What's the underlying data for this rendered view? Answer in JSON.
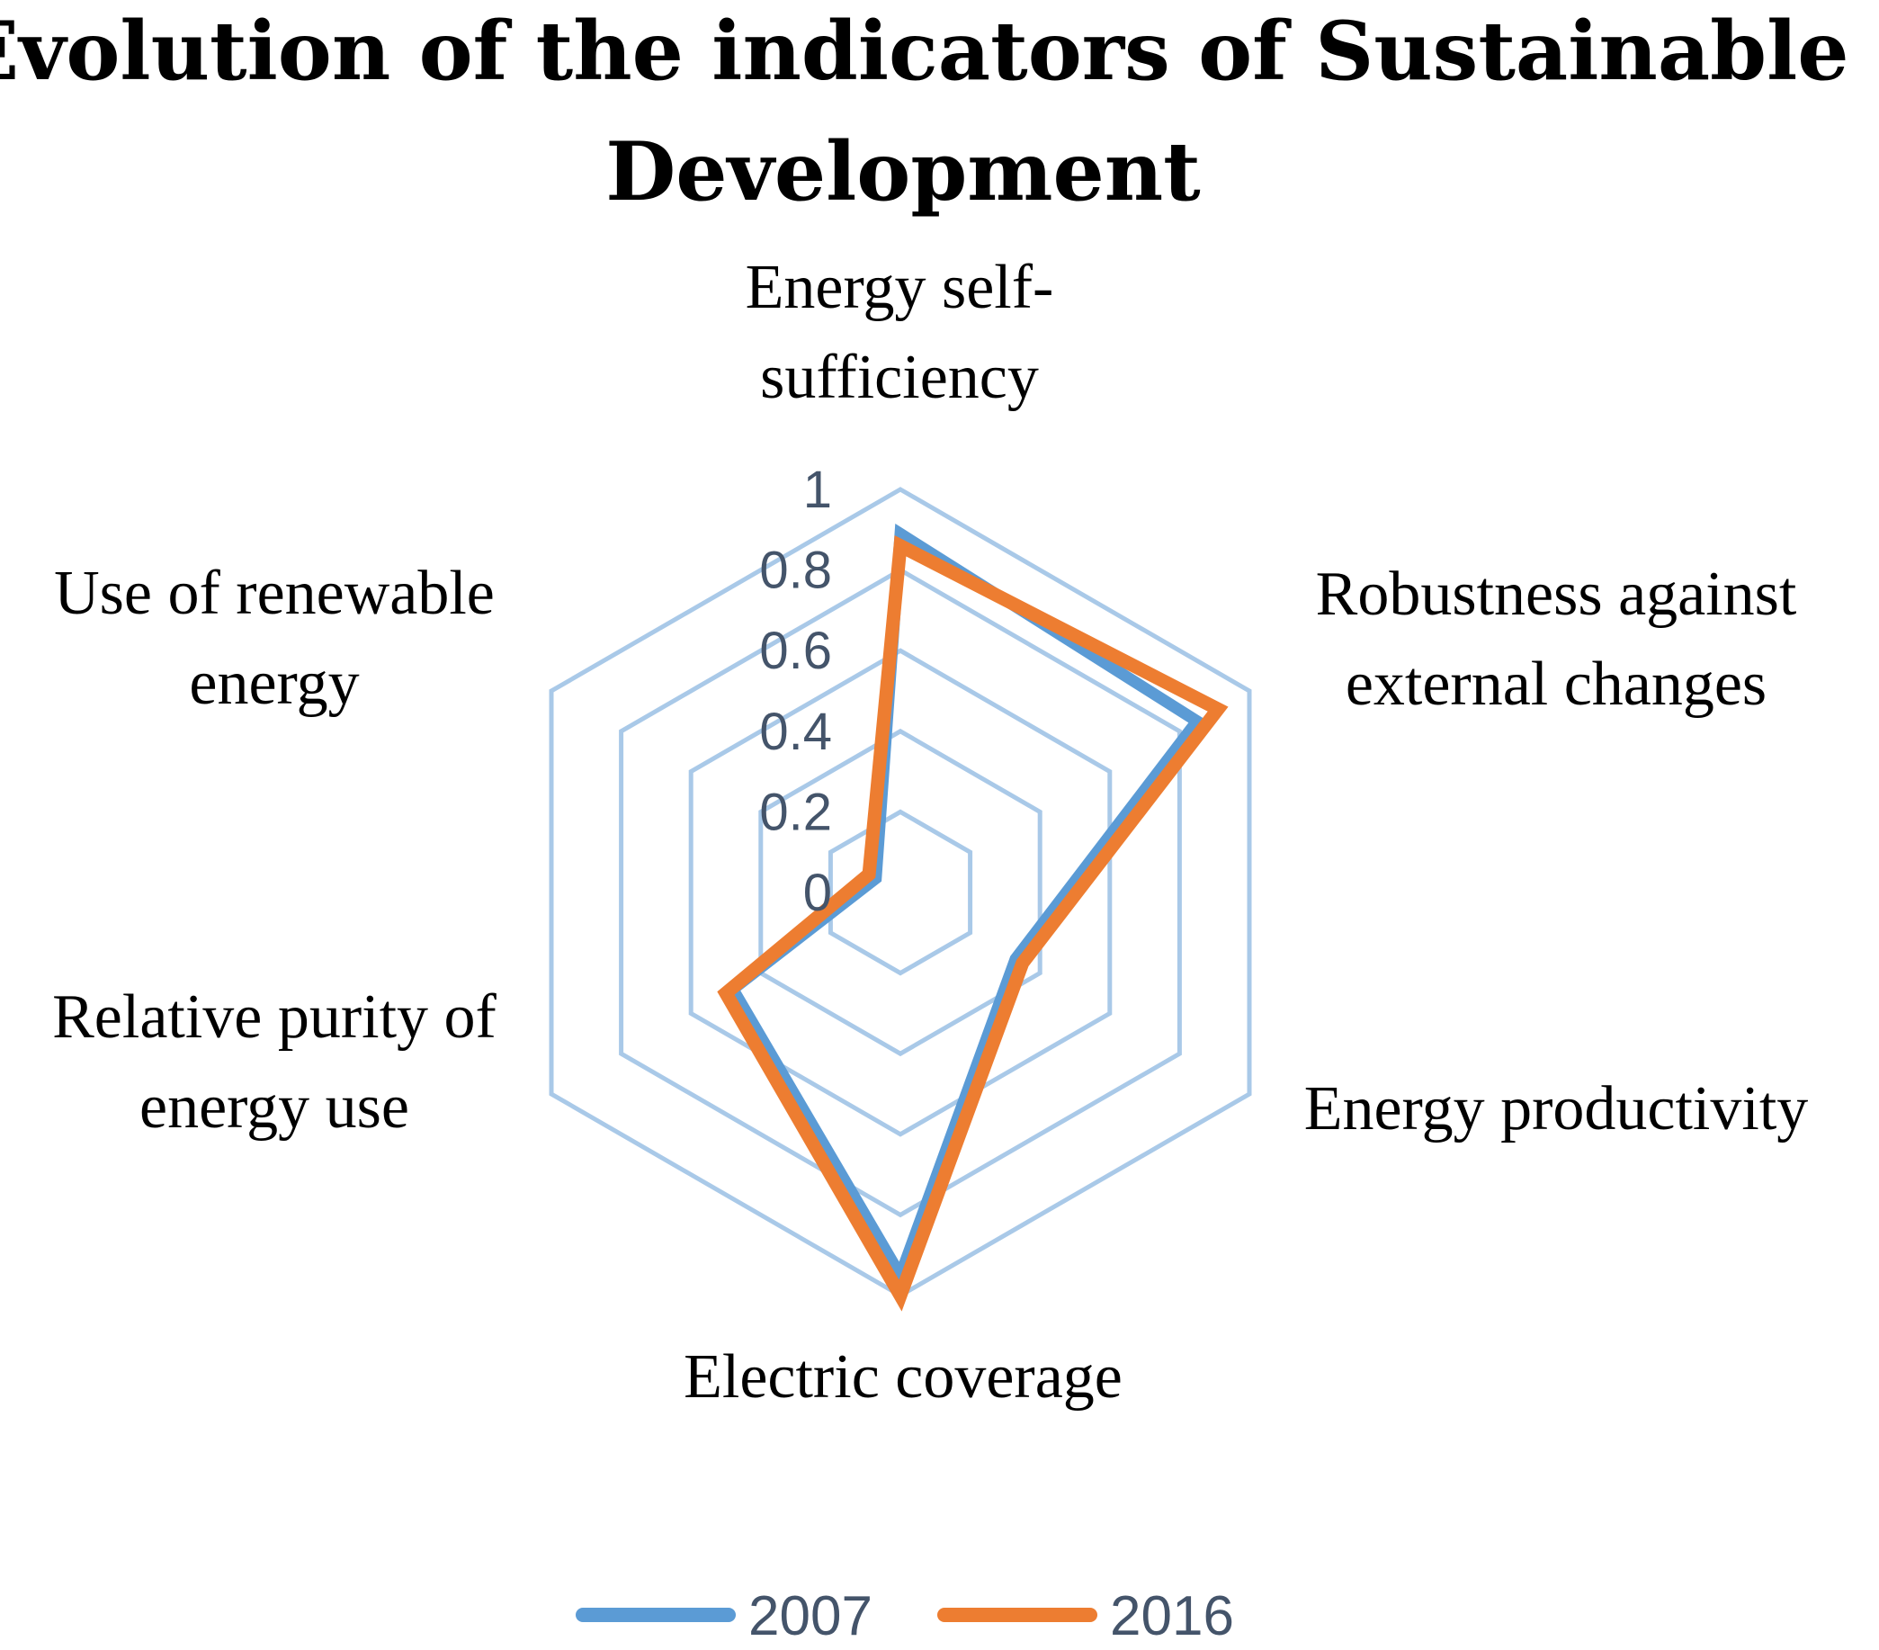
{
  "chart_data": {
    "type": "radar",
    "title_lines": [
      "Evolution of the indicators of Sustainable",
      "Development"
    ],
    "axes": [
      {
        "name": "energy-self-sufficiency",
        "lines": [
          "Energy self-",
          "sufficiency"
        ]
      },
      {
        "name": "robustness",
        "lines": [
          "Robustness against",
          "external changes"
        ]
      },
      {
        "name": "energy-productivity",
        "lines": [
          "Energy productivity"
        ]
      },
      {
        "name": "electric-coverage",
        "lines": [
          "Electric coverage"
        ]
      },
      {
        "name": "relative-purity",
        "lines": [
          "Relative purity of",
          "energy use"
        ]
      },
      {
        "name": "renewable-energy",
        "lines": [
          "Use of renewable",
          "energy"
        ]
      }
    ],
    "ticks": [
      "0",
      "0.2",
      "0.4",
      "0.6",
      "0.8",
      "1"
    ],
    "tick_values": [
      0,
      0.2,
      0.4,
      0.6,
      0.8,
      1
    ],
    "range": [
      0,
      1
    ],
    "series": [
      {
        "name": "2007",
        "color": "#5b9bd5",
        "values": [
          0.89,
          0.85,
          0.33,
          0.95,
          0.48,
          0.07
        ]
      },
      {
        "name": "2016",
        "color": "#ed7d31",
        "values": [
          0.86,
          0.91,
          0.35,
          1.0,
          0.5,
          0.09
        ]
      }
    ],
    "grid_color": "#a9c9e8",
    "legend_position": "bottom"
  }
}
